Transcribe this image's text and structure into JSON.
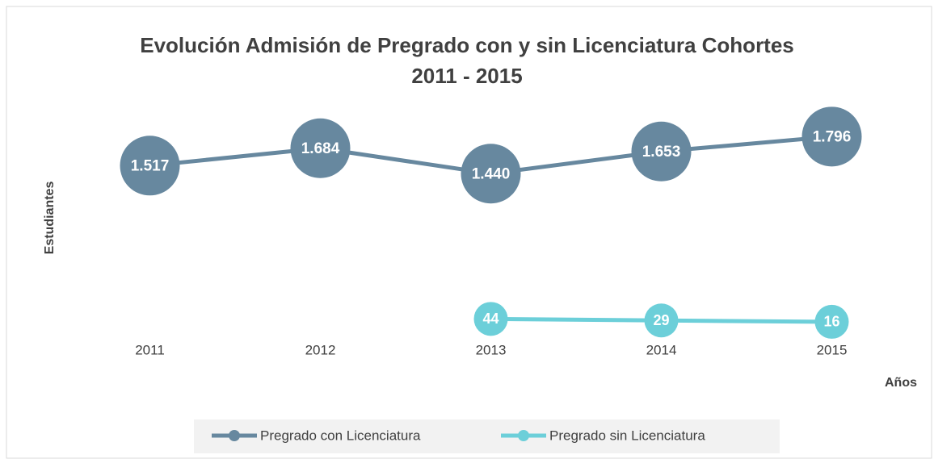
{
  "chart_data": {
    "type": "line",
    "title": [
      "Evolución Admisión de Pregrado con y sin Licenciatura Cohortes",
      "2011 - 2015"
    ],
    "y_label": "Estudiantes",
    "x_label": "Años",
    "categories": [
      "2011",
      "2012",
      "2013",
      "2014",
      "2015"
    ],
    "series": [
      {
        "name": "Pregrado con Licenciatura",
        "color": "#67889f",
        "values": [
          1517,
          1684,
          1440,
          1653,
          1796
        ],
        "value_labels": [
          "1.517",
          "1.684",
          "1.440",
          "1.653",
          "1.796"
        ]
      },
      {
        "name": "Pregrado sin Licenciatura",
        "color": "#6ccfd9",
        "values": [
          null,
          null,
          44,
          29,
          16
        ]
      }
    ],
    "ylim": [
      0,
      2000
    ],
    "legend": "bottom"
  }
}
